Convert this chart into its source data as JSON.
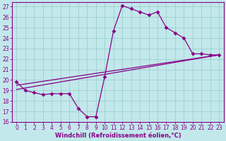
{
  "bg_color": "#c2e8eb",
  "line_color": "#880088",
  "grid_color": "#9ecfcf",
  "xlim": [
    -0.5,
    23.5
  ],
  "ylim": [
    16,
    27.4
  ],
  "xticks": [
    0,
    1,
    2,
    3,
    4,
    5,
    6,
    7,
    8,
    9,
    10,
    11,
    12,
    13,
    14,
    15,
    16,
    17,
    18,
    19,
    20,
    21,
    22,
    23
  ],
  "yticks": [
    16,
    17,
    18,
    19,
    20,
    21,
    22,
    23,
    24,
    25,
    26,
    27
  ],
  "xlabel": "Windchill (Refroidissement éolien,°C)",
  "curve_x": [
    0,
    1,
    2,
    3,
    4,
    5,
    6,
    7,
    8,
    9,
    10,
    11,
    12,
    13,
    14,
    15,
    16,
    17,
    18,
    19,
    20,
    21,
    22,
    23
  ],
  "curve_y": [
    19.8,
    19.0,
    18.8,
    18.6,
    18.7,
    18.7,
    18.7,
    17.3,
    16.5,
    16.5,
    20.3,
    24.7,
    27.1,
    26.8,
    26.5,
    26.2,
    26.5,
    25.0,
    24.5,
    24.0,
    22.5,
    22.5,
    22.4,
    22.4
  ],
  "line2_x": [
    0,
    23
  ],
  "line2_y": [
    19.5,
    22.4
  ],
  "line3_x": [
    0,
    23
  ],
  "line3_y": [
    19.1,
    22.4
  ],
  "tick_fontsize": 5.5,
  "xlabel_fontsize": 6.0,
  "marker_size": 3.0
}
